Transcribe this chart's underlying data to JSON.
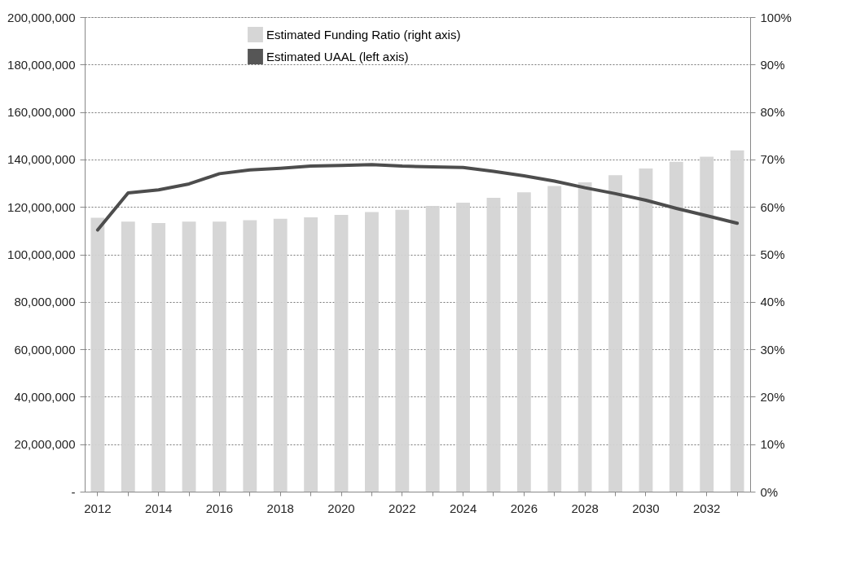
{
  "chart_data": {
    "type": "bar",
    "categories": [
      "2012",
      null,
      "2014",
      null,
      "2016",
      null,
      "2018",
      null,
      "2020",
      null,
      "2022",
      null,
      "2024",
      null,
      "2026",
      null,
      "2028",
      null,
      "2030",
      null,
      "2032",
      null
    ],
    "series": [
      {
        "name": "Estimated Funding Ratio (right axis)",
        "axis": "y2",
        "color": "#d4d4d4",
        "values": [
          57.7,
          56.9,
          56.6,
          56.9,
          56.9,
          57.2,
          57.5,
          57.8,
          58.3,
          58.9,
          59.4,
          60.2,
          60.9,
          61.9,
          63.1,
          64.4,
          65.2,
          66.7,
          68.1,
          69.5,
          70.6,
          71.9
        ]
      },
      {
        "name": "Estimated UAAL (left axis)",
        "type": "line",
        "axis": "y",
        "color": "#4d4d4d",
        "values": [
          110300000,
          125900000,
          127200000,
          129700000,
          134000000,
          135600000,
          136300000,
          137200000,
          137500000,
          137800000,
          137200000,
          136900000,
          136600000,
          135000000,
          133100000,
          130900000,
          128100000,
          125600000,
          122800000,
          119400000,
          116300000,
          113100000
        ]
      }
    ],
    "ylim": [
      0,
      200000000
    ],
    "yticks": [
      {
        "value": 0,
        "label": "-"
      },
      {
        "value": 20000000,
        "label": "20,000,000"
      },
      {
        "value": 40000000,
        "label": "40,000,000"
      },
      {
        "value": 60000000,
        "label": "60,000,000"
      },
      {
        "value": 80000000,
        "label": "80,000,000"
      },
      {
        "value": 100000000,
        "label": "100,000,000"
      },
      {
        "value": 120000000,
        "label": "120,000,000"
      },
      {
        "value": 140000000,
        "label": "140,000,000"
      },
      {
        "value": 160000000,
        "label": "160,000,000"
      },
      {
        "value": 180000000,
        "label": "180,000,000"
      },
      {
        "value": 200000000,
        "label": "200,000,000"
      }
    ],
    "y2lim": [
      0,
      100
    ],
    "y2ticks": [
      {
        "value": 0,
        "label": "0%"
      },
      {
        "value": 10,
        "label": "10%"
      },
      {
        "value": 20,
        "label": "20%"
      },
      {
        "value": 30,
        "label": "30%"
      },
      {
        "value": 40,
        "label": "40%"
      },
      {
        "value": 50,
        "label": "50%"
      },
      {
        "value": 60,
        "label": "60%"
      },
      {
        "value": 70,
        "label": "70%"
      },
      {
        "value": 80,
        "label": "80%"
      },
      {
        "value": 90,
        "label": "90%"
      },
      {
        "value": 100,
        "label": "100%"
      }
    ],
    "grid": "y",
    "legend": "top left",
    "marker": "none",
    "line_style": "solid"
  }
}
